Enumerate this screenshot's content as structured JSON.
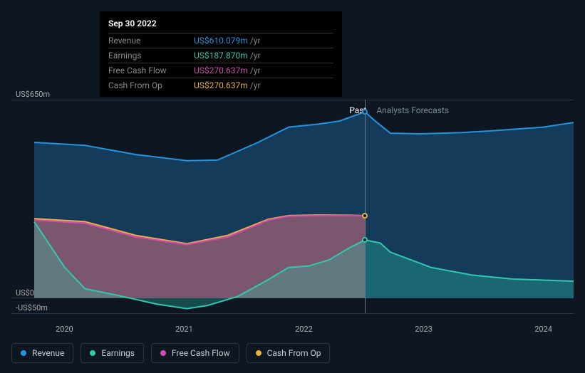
{
  "tooltip": {
    "date": "Sep 30 2022",
    "rows": [
      {
        "label": "Revenue",
        "value": "US$610.079m",
        "unit": "/yr",
        "color": "#2394df"
      },
      {
        "label": "Earnings",
        "value": "US$187.870m",
        "unit": "/yr",
        "color": "#30c9b0"
      },
      {
        "label": "Free Cash Flow",
        "value": "US$270.637m",
        "unit": "/yr",
        "color": "#d54ab3"
      },
      {
        "label": "Cash From Op",
        "value": "US$270.637m",
        "unit": "/yr",
        "color": "#eab040"
      }
    ]
  },
  "yAxis": {
    "max_label": "US$650m",
    "max": 650,
    "zero_label": "US$0",
    "zero": 0,
    "min_label": "-US$50m",
    "min": -50
  },
  "xAxis": {
    "labels": [
      "2020",
      "2021",
      "2022",
      "2023",
      "2024"
    ],
    "range_start": 2019.5,
    "range_end": 2024.8
  },
  "divider": {
    "x": 2022.75,
    "past_label": "Past",
    "forecast_label": "Analysts Forecasts"
  },
  "series": {
    "revenue": {
      "label": "Revenue",
      "color": "#2394df",
      "points": [
        [
          2019.5,
          510
        ],
        [
          2020.0,
          500
        ],
        [
          2020.5,
          470
        ],
        [
          2021.0,
          450
        ],
        [
          2021.3,
          452
        ],
        [
          2021.7,
          510
        ],
        [
          2022.0,
          560
        ],
        [
          2022.3,
          570
        ],
        [
          2022.5,
          580
        ],
        [
          2022.75,
          610
        ],
        [
          2022.85,
          580
        ],
        [
          2023.0,
          540
        ],
        [
          2023.3,
          538
        ],
        [
          2023.7,
          542
        ],
        [
          2024.0,
          548
        ],
        [
          2024.5,
          560
        ],
        [
          2024.8,
          575
        ]
      ]
    },
    "earnings": {
      "label": "Earnings",
      "color": "#30c9b0",
      "points": [
        [
          2019.5,
          250
        ],
        [
          2019.8,
          100
        ],
        [
          2020.0,
          30
        ],
        [
          2020.3,
          10
        ],
        [
          2020.7,
          -20
        ],
        [
          2021.0,
          -35
        ],
        [
          2021.2,
          -25
        ],
        [
          2021.5,
          5
        ],
        [
          2021.8,
          60
        ],
        [
          2022.0,
          100
        ],
        [
          2022.2,
          105
        ],
        [
          2022.4,
          125
        ],
        [
          2022.6,
          165
        ],
        [
          2022.75,
          190
        ],
        [
          2022.9,
          180
        ],
        [
          2023.0,
          150
        ],
        [
          2023.4,
          100
        ],
        [
          2023.8,
          75
        ],
        [
          2024.2,
          62
        ],
        [
          2024.8,
          55
        ]
      ]
    },
    "fcf": {
      "label": "Free Cash Flow",
      "color": "#d54ab3",
      "points": [
        [
          2019.5,
          255
        ],
        [
          2020.0,
          245
        ],
        [
          2020.5,
          200
        ],
        [
          2021.0,
          175
        ],
        [
          2021.4,
          200
        ],
        [
          2021.8,
          255
        ],
        [
          2022.0,
          268
        ],
        [
          2022.3,
          270
        ],
        [
          2022.6,
          270
        ],
        [
          2022.75,
          270
        ]
      ]
    },
    "cfo": {
      "label": "Cash From Op",
      "color": "#eab040",
      "points": [
        [
          2019.5,
          260
        ],
        [
          2020.0,
          250
        ],
        [
          2020.5,
          205
        ],
        [
          2021.0,
          178
        ],
        [
          2021.4,
          205
        ],
        [
          2021.8,
          258
        ],
        [
          2022.0,
          270
        ],
        [
          2022.3,
          272
        ],
        [
          2022.6,
          271
        ],
        [
          2022.75,
          270
        ]
      ]
    }
  },
  "legend": [
    {
      "key": "revenue",
      "label": "Revenue",
      "color": "#2394df"
    },
    {
      "key": "earnings",
      "label": "Earnings",
      "color": "#30c9b0"
    },
    {
      "key": "fcf",
      "label": "Free Cash Flow",
      "color": "#d54ab3"
    },
    {
      "key": "cfo",
      "label": "Cash From Op",
      "color": "#eab040"
    }
  ],
  "style": {
    "background": "#0e1621",
    "grid_color": "#2a3645",
    "label_color": "#aaa",
    "line_width": 2,
    "area_opacity": 0.3
  }
}
